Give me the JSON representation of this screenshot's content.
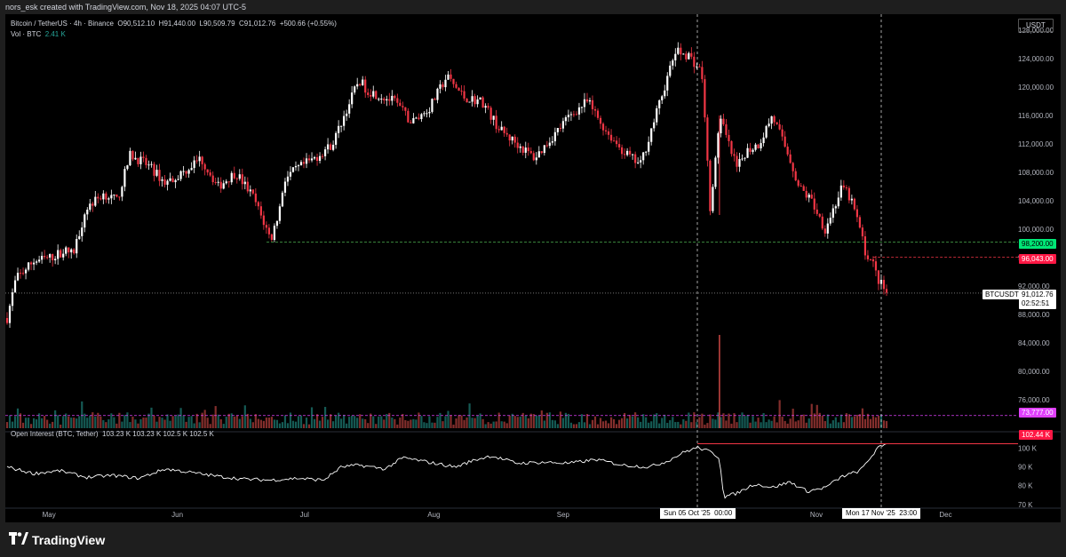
{
  "caption": "nors_esk created with TradingView.com, Nov 18, 2025 04:07 UTC-5",
  "legend": {
    "symbol": "Bitcoin / TetherUS · 4h · Binance",
    "o_label": "O",
    "o_val": "90,512.10",
    "h_label": "H",
    "h_val": "91,440.00",
    "l_label": "L",
    "l_val": "90,509.79",
    "c_label": "C",
    "c_val": "91,012.76",
    "change": "+500.66 (+0.55%)",
    "vol_label": "Vol · BTC",
    "vol_val": "2.41 K",
    "oi_label": "Open Interest (BTC, Tether)",
    "oi_vals": "103.23 K  103.23 K  102.5 K  102.5 K"
  },
  "currency": "USDT",
  "price_tags": {
    "green_level": "98,200.00",
    "red_level": "96,043.00",
    "symbol_tag": "BTCUSDT",
    "last_price": "91,012.76",
    "countdown": "02:52:51",
    "magenta_level": "73,777.00",
    "oi_last": "102.44 K"
  },
  "crosshair": {
    "left_date": "Sun 05 Oct '25",
    "left_time": "00:00",
    "right_date": "Mon 17 Nov '25",
    "right_time": "23:00"
  },
  "brand": "TradingView",
  "colors": {
    "up": "#ffffff",
    "down": "#f23645",
    "green_line": "#4caf50",
    "red_line": "#f23645",
    "magenta_line": "#e040fb",
    "vol_up": "#26a69a",
    "vol_down": "#ef5350"
  },
  "chart_data": {
    "type": "line",
    "x_axis_labels": [
      "May",
      "Jun",
      "Jul",
      "Aug",
      "Sep",
      "Oct",
      "Nov",
      "Dec"
    ],
    "price_ticks": [
      128000,
      124000,
      120000,
      116000,
      112000,
      108000,
      104000,
      100000,
      96000,
      92000,
      88000,
      84000,
      80000,
      76000
    ],
    "price_tick_labels": [
      "128,000.00",
      "124,000.00",
      "120,000.00",
      "116,000.00",
      "112,000.00",
      "108,000.00",
      "104,000.00",
      "100,000.00",
      "96,000.00",
      "92,000.00",
      "88,000.00",
      "84,000.00",
      "80,000.00",
      "76,000.00"
    ],
    "price_ylim": [
      72000,
      129500
    ],
    "oi_ticks": [
      100000,
      90000,
      80000,
      70000
    ],
    "oi_tick_labels": [
      "100 K",
      "90 K",
      "80 K",
      "70 K"
    ],
    "oi_ylim": [
      68000,
      106000
    ],
    "series": [
      {
        "name": "Bitcoin / TetherUS",
        "x": [
          0,
          0.01,
          0.03,
          0.05,
          0.065,
          0.075,
          0.09,
          0.11,
          0.125,
          0.14,
          0.16,
          0.18,
          0.2,
          0.22,
          0.24,
          0.26,
          0.28,
          0.3,
          0.31,
          0.315,
          0.33,
          0.35,
          0.37,
          0.39,
          0.4,
          0.41,
          0.42,
          0.44,
          0.46,
          0.48,
          0.5,
          0.52,
          0.54,
          0.56,
          0.58,
          0.6,
          0.62,
          0.64,
          0.66,
          0.68,
          0.7,
          0.72,
          0.74,
          0.76,
          0.775,
          0.79,
          0.8,
          0.81,
          0.815,
          0.82,
          0.83,
          0.84,
          0.855,
          0.87,
          0.88,
          0.89,
          0.9,
          0.915,
          0.93,
          0.95,
          0.96,
          0.97,
          0.975,
          0.985,
          0.99,
          1.0
        ],
        "values": [
          87500,
          93000,
          95500,
          96000,
          97000,
          96500,
          103000,
          105000,
          104000,
          110500,
          109000,
          106500,
          108000,
          110000,
          106000,
          108000,
          104500,
          98500,
          103000,
          107000,
          108500,
          110000,
          112000,
          118000,
          121000,
          119500,
          119000,
          118000,
          115000,
          117000,
          121500,
          118500,
          118000,
          114000,
          112000,
          110000,
          113000,
          116000,
          118000,
          114000,
          111000,
          109000,
          117000,
          125000,
          124500,
          122000,
          102000,
          116000,
          114000,
          112000,
          108500,
          111000,
          112000,
          116000,
          113000,
          110000,
          106000,
          104000,
          100000,
          106000,
          104000,
          100000,
          97000,
          95000,
          93000,
          91012.76
        ]
      },
      {
        "name": "Open Interest (BTC, Tether)",
        "x": [
          0,
          0.03,
          0.06,
          0.09,
          0.12,
          0.15,
          0.18,
          0.21,
          0.24,
          0.27,
          0.3,
          0.33,
          0.36,
          0.38,
          0.4,
          0.43,
          0.45,
          0.48,
          0.51,
          0.53,
          0.55,
          0.58,
          0.61,
          0.64,
          0.67,
          0.7,
          0.73,
          0.75,
          0.77,
          0.785,
          0.8,
          0.81,
          0.815,
          0.83,
          0.85,
          0.87,
          0.89,
          0.91,
          0.93,
          0.95,
          0.97,
          0.98,
          0.99,
          1.0
        ],
        "values": [
          90000,
          86500,
          88000,
          84500,
          85500,
          84000,
          89000,
          87000,
          85000,
          83500,
          83000,
          84000,
          83000,
          90000,
          91000,
          89000,
          95000,
          92500,
          90000,
          93500,
          96000,
          92000,
          92500,
          92000,
          94000,
          91000,
          90000,
          93000,
          98000,
          100500,
          98000,
          95000,
          74000,
          76000,
          81000,
          79000,
          82000,
          77000,
          79000,
          85000,
          88000,
          94000,
          100000,
          102440
        ]
      }
    ]
  }
}
